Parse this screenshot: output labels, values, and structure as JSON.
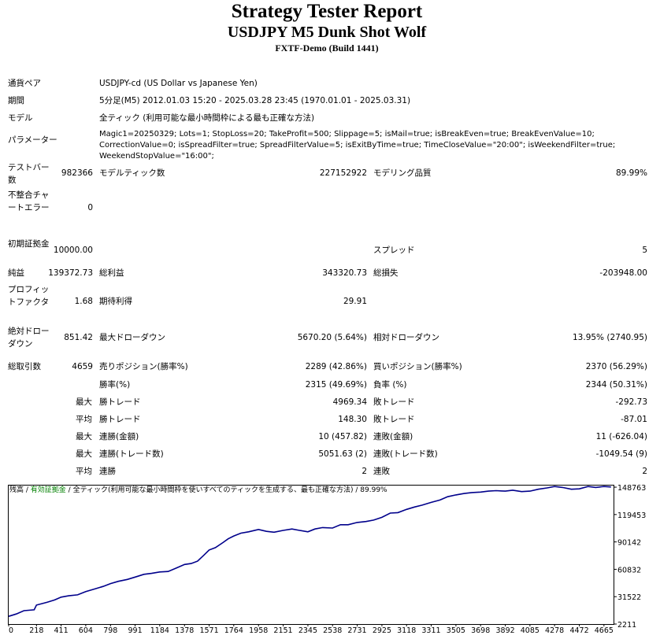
{
  "header": {
    "title": "Strategy Tester Report",
    "subtitle": "USDJPY M5 Dunk Shot Wolf",
    "server": "FXTF-Demo (Build 1441)"
  },
  "info": {
    "pair_label": "通貨ペア",
    "pair_value": "USDJPY-cd (US Dollar vs Japanese Yen)",
    "period_label": "期間",
    "period_value": "5分足(M5) 2012.01.03 15:20 - 2025.03.28 23:45 (1970.01.01 - 2025.03.31)",
    "model_label": "モデル",
    "model_value": "全ティック (利用可能な最小時間枠による最も正確な方法)",
    "params_label": "パラメーター",
    "params_value": "Magic1=20250329; Lots=1; StopLoss=20; TakeProfit=500; Slippage=5; isMail=true; isBreakEven=true; BreakEvenValue=10; CorrectionValue=0; isSpreadFilter=true; SpreadFilterValue=5; isExitByTime=true; TimeCloseValue=\"20:00\"; isWeekendFilter=true; WeekendStopValue=\"16:00\";"
  },
  "stats": {
    "bars_label": "テストバー数",
    "bars_value": "982366",
    "ticks_label": "モデルティック数",
    "ticks_value": "227152922",
    "quality_label": "モデリング品質",
    "quality_value": "89.99%",
    "mismatch_label": "不整合チャートエラー",
    "mismatch_value": "0",
    "deposit_label": "初期証拠金",
    "deposit_value": "10000.00",
    "spread_label": "スプレッド",
    "spread_value": "5",
    "net_label": "純益",
    "net_value": "139372.73",
    "gross_profit_label": "総利益",
    "gross_profit_value": "343320.73",
    "gross_loss_label": "総損失",
    "gross_loss_value": "-203948.00",
    "pf_label": "プロフィットファクタ",
    "pf_value": "1.68",
    "expected_label": "期待利得",
    "expected_value": "29.91",
    "abs_dd_label": "絶対ドローダウン",
    "abs_dd_value": "851.42",
    "max_dd_label": "最大ドローダウン",
    "max_dd_value": "5670.20 (5.64%)",
    "rel_dd_label": "相対ドローダウン",
    "rel_dd_value": "13.95% (2740.95)",
    "trades_label": "総取引数",
    "trades_value": "4659",
    "short_label": "売りポジション(勝率%)",
    "short_value": "2289 (42.86%)",
    "long_label": "買いポジション(勝率%)",
    "long_value": "2370 (56.29%)",
    "win_label": "勝率(%)",
    "win_value": "2315 (49.69%)",
    "loss_label": "負率 (%)",
    "loss_value": "2344 (50.31%)",
    "max_label": "最大",
    "avg_label": "平均",
    "largest_win_label": "勝トレード",
    "largest_win_value": "4969.34",
    "largest_loss_label": "敗トレード",
    "largest_loss_value": "-292.73",
    "avg_win_label": "勝トレード",
    "avg_win_value": "148.30",
    "avg_loss_label": "敗トレード",
    "avg_loss_value": "-87.01",
    "max_consec_win_label": "連勝(金額)",
    "max_consec_win_value": "10 (457.82)",
    "max_consec_loss_label": "連敗(金額)",
    "max_consec_loss_value": "11 (-626.04)",
    "max_consec_profit_label": "連勝(トレード数)",
    "max_consec_profit_value": "5051.63 (2)",
    "max_consec_lossamt_label": "連敗(トレード数)",
    "max_consec_lossamt_value": "-1049.54 (9)",
    "avg_consec_win_label": "連勝",
    "avg_consec_win_value": "2",
    "avg_consec_loss_label": "連敗",
    "avg_consec_loss_value": "2"
  },
  "legend": {
    "balance": "残高",
    "sep1": " / ",
    "equity": "有効証拠金",
    "sep2": " / ",
    "model_text": "全ティック(利用可能な最小時間枠を使いすべてのティックを生成する、最も正確な方法)",
    "sep3": " / ",
    "quality": "89.99%"
  },
  "chart_data": {
    "type": "line",
    "title": "",
    "xlabel": "",
    "ylabel": "",
    "x_ticks": [
      0,
      218,
      411,
      604,
      798,
      991,
      1184,
      1378,
      1571,
      1764,
      1958,
      2151,
      2345,
      2538,
      2731,
      2925,
      3118,
      3311,
      3505,
      3698,
      3892,
      4085,
      4278,
      4472,
      4665
    ],
    "y_ticks": [
      2211,
      31522,
      60832,
      90142,
      119453,
      148763
    ],
    "xlim": [
      0,
      4740
    ],
    "ylim": [
      2211,
      150500
    ],
    "line_color": "#00008b",
    "series": [
      {
        "x": [
          0,
          60,
          120,
          200,
          218,
          300,
          360,
          411,
          470,
          540,
          604,
          680,
          740,
          798,
          860,
          930,
          991,
          1060,
          1120,
          1184,
          1250,
          1320,
          1378,
          1430,
          1480,
          1530,
          1571,
          1620,
          1680,
          1720,
          1764,
          1820,
          1880,
          1958,
          2020,
          2080,
          2151,
          2220,
          2280,
          2345,
          2400,
          2460,
          2538,
          2600,
          2660,
          2731,
          2800,
          2860,
          2925,
          2990,
          3050,
          3118,
          3180,
          3240,
          3311,
          3380,
          3440,
          3505,
          3570,
          3630,
          3698,
          3760,
          3820,
          3892,
          3950,
          4020,
          4085,
          4150,
          4220,
          4278,
          4340,
          4410,
          4472,
          4540,
          4600,
          4665,
          4720
        ],
        "y": [
          10500,
          13000,
          16500,
          17500,
          22500,
          25500,
          28000,
          31000,
          32500,
          33500,
          37000,
          40000,
          42500,
          45500,
          48000,
          50000,
          52500,
          55500,
          56500,
          58000,
          58500,
          62500,
          66000,
          67000,
          69500,
          76000,
          81500,
          84000,
          89500,
          93500,
          96500,
          99500,
          101000,
          103500,
          101500,
          100500,
          102500,
          104000,
          102500,
          101000,
          104000,
          105500,
          105000,
          108500,
          108500,
          111000,
          112000,
          113500,
          116500,
          121000,
          121500,
          125000,
          127500,
          129500,
          132500,
          135000,
          138500,
          140500,
          142000,
          143000,
          143500,
          144500,
          145000,
          144500,
          145500,
          144000,
          144500,
          146500,
          148000,
          149500,
          148500,
          146500,
          147000,
          149500,
          148500,
          149500,
          149000
        ]
      }
    ]
  }
}
